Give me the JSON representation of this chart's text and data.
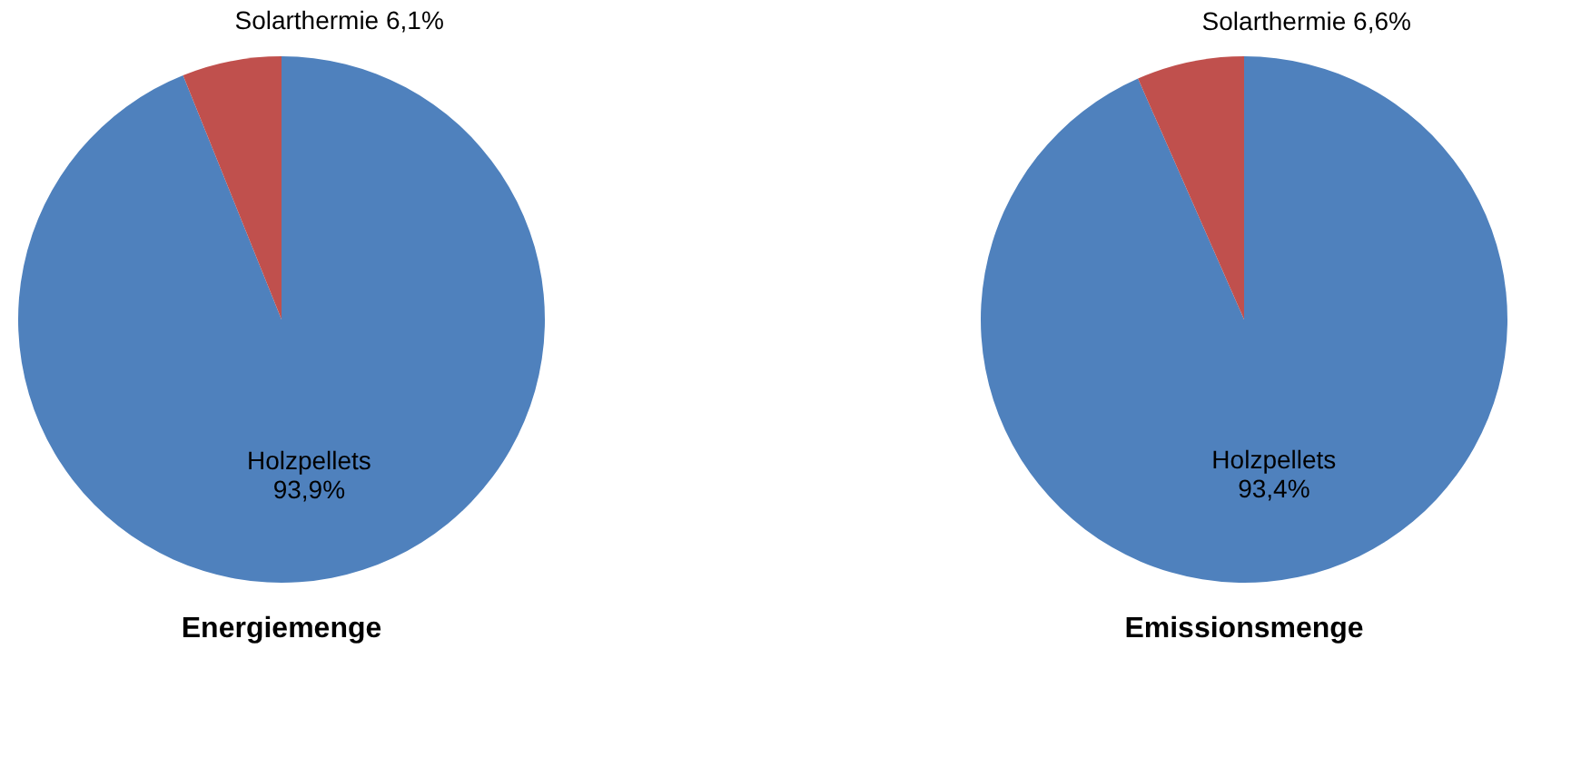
{
  "chart_data": [
    {
      "type": "pie",
      "title": "Energiemenge",
      "categories": [
        "Holzpellets",
        "Solarthermie"
      ],
      "values": [
        93.9,
        6.1
      ],
      "value_labels": [
        "93,9%",
        "6,1%"
      ],
      "colors": [
        "#4f81bd",
        "#c0504d"
      ],
      "legend": false
    },
    {
      "type": "pie",
      "title": "Emissionsmenge",
      "categories": [
        "Holzpellets",
        "Solarthermie"
      ],
      "values": [
        93.4,
        6.6
      ],
      "value_labels": [
        "93,4%",
        "6,6%"
      ],
      "colors": [
        "#4f81bd",
        "#c0504d"
      ],
      "legend": false
    }
  ]
}
